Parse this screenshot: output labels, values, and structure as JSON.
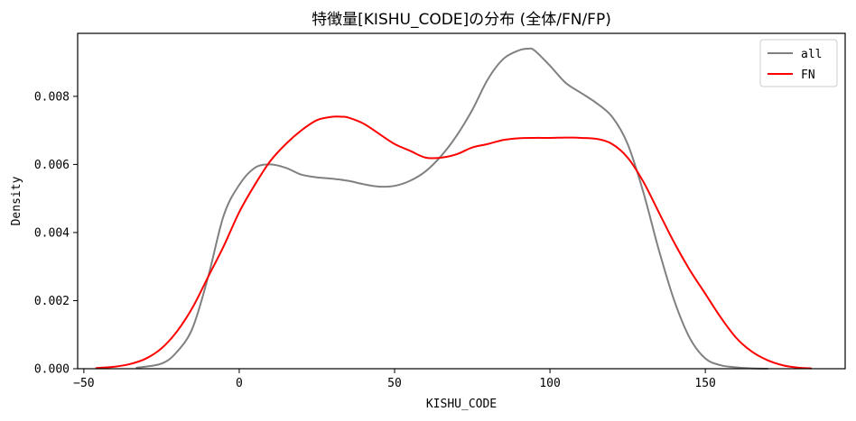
{
  "chart_data": {
    "type": "line",
    "title": "特徴量[KISHU_CODE]の分布 (全体/FN/FP)",
    "xlabel": "KISHU_CODE",
    "ylabel": "Density",
    "xlim": [
      -52,
      195
    ],
    "ylim": [
      0,
      0.00985
    ],
    "xticks": [
      -50,
      0,
      50,
      100,
      150
    ],
    "yticks": [
      0.0,
      0.002,
      0.004,
      0.006,
      0.008
    ],
    "xtick_labels": [
      "−50",
      "0",
      "50",
      "100",
      "150"
    ],
    "ytick_labels": [
      "0.000",
      "0.002",
      "0.004",
      "0.006",
      "0.008"
    ],
    "grid": false,
    "legend_position": "top-right",
    "series": [
      {
        "name": "all",
        "color": "#808080",
        "x": [
          -33,
          -25,
          -20,
          -15,
          -10,
          -5,
          0,
          5,
          10,
          15,
          20,
          25,
          30,
          35,
          40,
          45,
          50,
          55,
          60,
          65,
          70,
          75,
          80,
          85,
          90,
          93,
          95,
          100,
          105,
          110,
          115,
          120,
          125,
          130,
          135,
          140,
          145,
          150,
          155,
          160,
          165,
          170
        ],
        "y": [
          3e-05,
          0.00015,
          0.0005,
          0.0012,
          0.0027,
          0.0045,
          0.0054,
          0.0059,
          0.006,
          0.0059,
          0.0057,
          0.00562,
          0.00558,
          0.00552,
          0.00542,
          0.00535,
          0.00537,
          0.00552,
          0.0058,
          0.00625,
          0.00685,
          0.0076,
          0.0085,
          0.0091,
          0.00935,
          0.0094,
          0.00935,
          0.0089,
          0.0084,
          0.0081,
          0.0078,
          0.0074,
          0.0066,
          0.0052,
          0.0035,
          0.002,
          0.0009,
          0.0003,
          0.0001,
          4e-05,
          1e-05,
          0.0
        ]
      },
      {
        "name": "FN",
        "color": "#ff0000",
        "x": [
          -46,
          -40,
          -35,
          -30,
          -25,
          -20,
          -15,
          -10,
          -5,
          0,
          5,
          10,
          15,
          20,
          25,
          30,
          33,
          35,
          40,
          45,
          50,
          55,
          60,
          65,
          70,
          75,
          80,
          85,
          90,
          95,
          100,
          105,
          110,
          115,
          120,
          125,
          130,
          135,
          140,
          145,
          150,
          155,
          160,
          165,
          170,
          175,
          180,
          184
        ],
        "y": [
          2e-05,
          6e-05,
          0.00014,
          0.0003,
          0.0006,
          0.0011,
          0.0018,
          0.0027,
          0.0036,
          0.0046,
          0.0054,
          0.0061,
          0.0066,
          0.007,
          0.0073,
          0.0074,
          0.0074,
          0.00738,
          0.0072,
          0.0069,
          0.0066,
          0.0064,
          0.0062,
          0.0062,
          0.0063,
          0.0065,
          0.0066,
          0.00672,
          0.00677,
          0.00678,
          0.00678,
          0.00679,
          0.00678,
          0.00675,
          0.0066,
          0.0062,
          0.0055,
          0.0046,
          0.0037,
          0.0029,
          0.0022,
          0.0015,
          0.0009,
          0.0005,
          0.00025,
          0.0001,
          3e-05,
          1e-05
        ]
      }
    ]
  }
}
